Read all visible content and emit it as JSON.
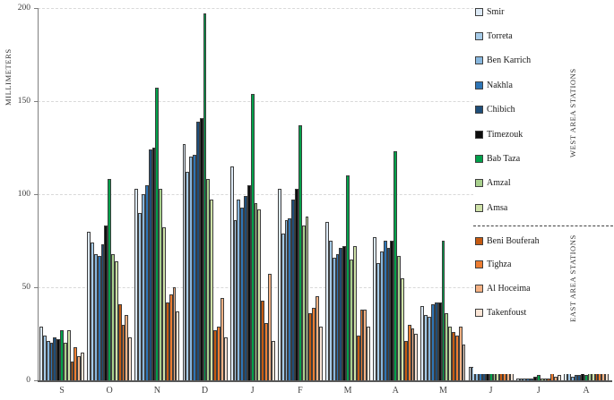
{
  "y_axis": {
    "title": "MILLIMETERS",
    "ticks": [
      0,
      50,
      100,
      150,
      200
    ]
  },
  "legend": {
    "west_title": "WEST AREA STATIONS",
    "east_title": "EAST AREA STATIONS"
  },
  "chart_data": {
    "type": "bar",
    "title": "",
    "xlabel": "",
    "ylabel": "MILLIMETERS",
    "ylim": [
      0,
      200
    ],
    "grid": "horizontal dashed every 50",
    "legend_position": "right",
    "categories": [
      "S",
      "O",
      "N",
      "D",
      "J",
      "F",
      "M",
      "A",
      "M",
      "J",
      "J",
      "A"
    ],
    "series": [
      {
        "name": "Smir",
        "group": "west",
        "color": "#dce9f5",
        "values": [
          29,
          80,
          103,
          127,
          115,
          103,
          85,
          77,
          40,
          7,
          1,
          5
        ]
      },
      {
        "name": "Torreta",
        "group": "west",
        "color": "#a6cbe8",
        "values": [
          24,
          74,
          90,
          112,
          86,
          79,
          75,
          63,
          35,
          7,
          1,
          4
        ]
      },
      {
        "name": "Ben Karrich",
        "group": "west",
        "color": "#88b7de",
        "values": [
          21,
          68,
          100,
          120,
          97,
          86,
          66,
          69,
          34,
          6,
          1,
          2
        ]
      },
      {
        "name": "Nakhla",
        "group": "west",
        "color": "#2e75b6",
        "values": [
          20,
          67,
          105,
          121,
          93,
          87,
          68,
          75,
          41,
          8,
          1,
          3
        ]
      },
      {
        "name": "Chibich",
        "group": "west",
        "color": "#1f4e79",
        "values": [
          23,
          73,
          124,
          139,
          99,
          97,
          71,
          71,
          42,
          8,
          1,
          3
        ]
      },
      {
        "name": "Timezouk",
        "group": "west",
        "color": "#0d0d0d",
        "values": [
          22,
          83,
          125,
          141,
          105,
          103,
          72,
          75,
          42,
          9,
          2,
          7
        ]
      },
      {
        "name": "Bab Taza",
        "group": "west",
        "color": "#00a04a",
        "values": [
          27,
          108,
          157,
          197,
          154,
          137,
          110,
          123,
          75,
          11,
          3,
          3
        ]
      },
      {
        "name": "Amzal",
        "group": "west",
        "color": "#a8d08d",
        "values": [
          20,
          68,
          103,
          108,
          95,
          83,
          65,
          67,
          36,
          6,
          1,
          5
        ]
      },
      {
        "name": "Amsa",
        "group": "west",
        "color": "#cfe2a8",
        "values": [
          27,
          64,
          82,
          97,
          92,
          88,
          72,
          55,
          29,
          6,
          1,
          6
        ]
      },
      {
        "name": "Beni Bouferah",
        "group": "east",
        "color": "#c55a11",
        "values": [
          10,
          41,
          42,
          27,
          43,
          36,
          24,
          21,
          26,
          8,
          1,
          4
        ]
      },
      {
        "name": "Tighza",
        "group": "east",
        "color": "#ed7d31",
        "values": [
          18,
          30,
          46,
          29,
          31,
          39,
          38,
          30,
          24,
          10,
          6,
          7
        ]
      },
      {
        "name": "Al Hoceima",
        "group": "east",
        "color": "#f4b183",
        "values": [
          13,
          35,
          50,
          44,
          57,
          45,
          38,
          28,
          29,
          9,
          2,
          6
        ]
      },
      {
        "name": "Takenfoust",
        "group": "east",
        "color": "#fbe5d6",
        "values": [
          15,
          23,
          37,
          23,
          21,
          29,
          29,
          25,
          19,
          8,
          3,
          4
        ]
      }
    ]
  }
}
